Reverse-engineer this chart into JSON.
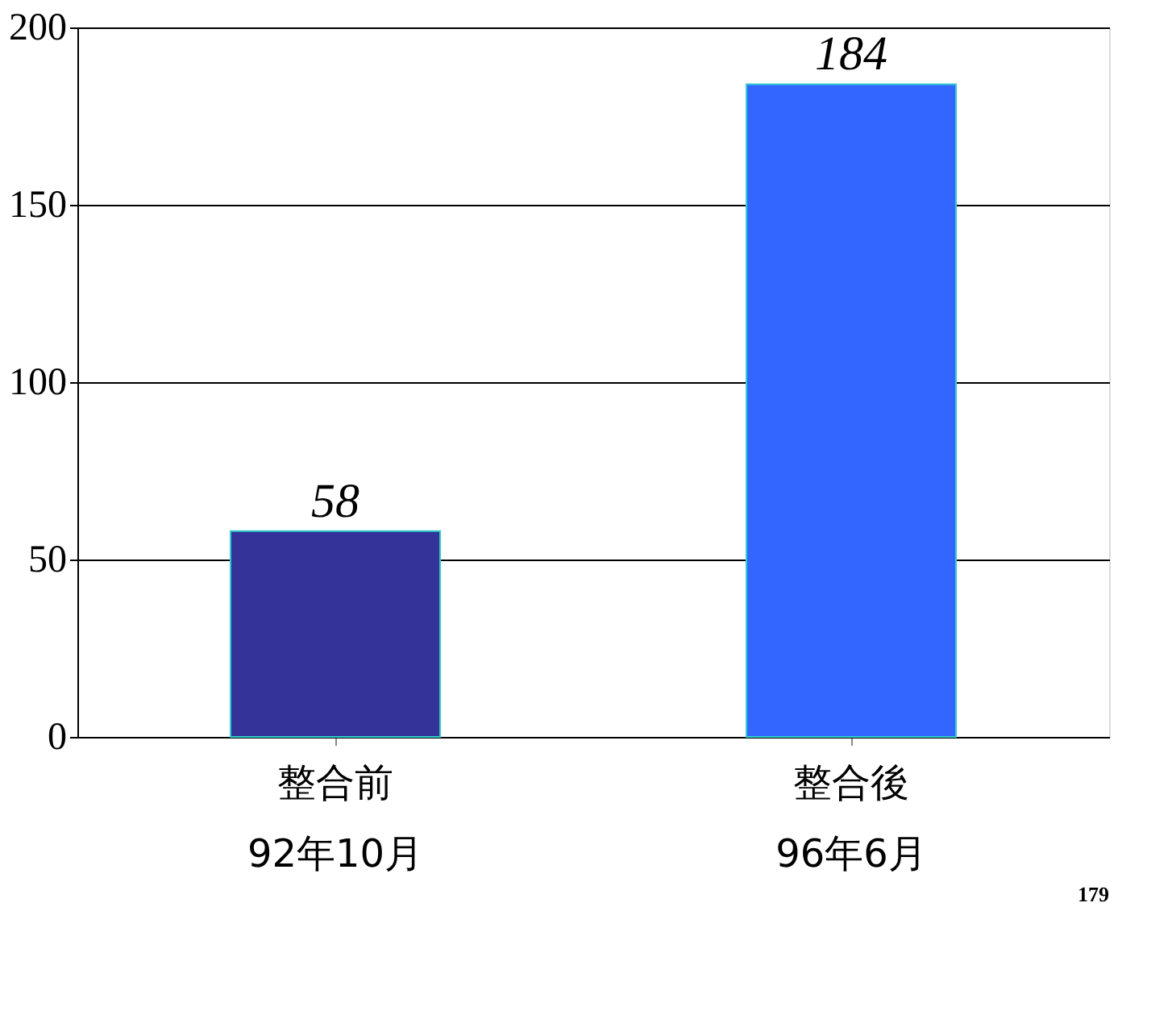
{
  "chart_data": {
    "type": "bar",
    "categories": [
      "整合前\n92年10月",
      "整合後\n96年6月"
    ],
    "values": [
      58,
      184
    ],
    "colors": [
      "#333399",
      "#3366ff"
    ],
    "ylim": [
      0,
      200
    ],
    "yticks": [
      0,
      50,
      100,
      150,
      200
    ],
    "grid": "y",
    "data_labels": true,
    "annotations": [
      "179"
    ]
  }
}
